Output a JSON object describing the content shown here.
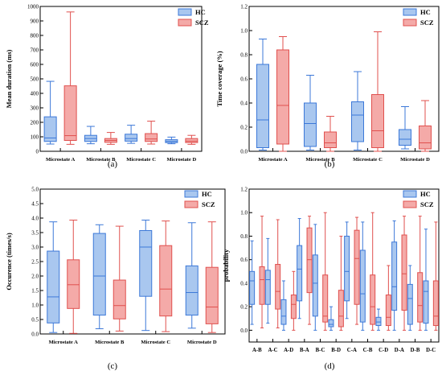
{
  "colors": {
    "hc_edge": "#3c78d8",
    "hc_fill": "#a9c7ef",
    "scz_edge": "#e0504e",
    "scz_fill": "#f4aaa8"
  },
  "chart_data": [
    {
      "id": "a",
      "type": "box",
      "panel_label": "(a)",
      "ylabel": "Mean duration (ms)",
      "ylim": [
        0,
        1000
      ],
      "yticks": [
        0,
        100,
        200,
        300,
        400,
        500,
        600,
        700,
        800,
        900,
        1000
      ],
      "ytick_labels": [
        "0",
        "100",
        "200",
        "300",
        "400",
        "500",
        "600",
        "700",
        "800",
        "900",
        "1000"
      ],
      "categories": [
        "Microstate A",
        "Microstate B",
        "Microstate C",
        "Microstate D"
      ],
      "legend": [
        "HC",
        "SCZ"
      ],
      "series": [
        {
          "name": "HC",
          "boxes": [
            {
              "min": 50,
              "q1": 68,
              "median": 92,
              "q3": 238,
              "max": 483
            },
            {
              "min": 52,
              "q1": 68,
              "median": 88,
              "q3": 110,
              "max": 172
            },
            {
              "min": 55,
              "q1": 70,
              "median": 88,
              "q3": 118,
              "max": 180
            },
            {
              "min": 52,
              "q1": 60,
              "median": 68,
              "q3": 80,
              "max": 98
            }
          ]
        },
        {
          "name": "SCZ",
          "boxes": [
            {
              "min": 48,
              "q1": 75,
              "median": 108,
              "q3": 452,
              "max": 962
            },
            {
              "min": 48,
              "q1": 62,
              "median": 75,
              "q3": 88,
              "max": 130
            },
            {
              "min": 50,
              "q1": 68,
              "median": 85,
              "q3": 122,
              "max": 208
            },
            {
              "min": 48,
              "q1": 60,
              "median": 70,
              "q3": 88,
              "max": 110
            }
          ]
        }
      ]
    },
    {
      "id": "b",
      "type": "box",
      "panel_label": "(b)",
      "ylabel": "Time coverage (%)",
      "ylim": [
        0,
        1.2
      ],
      "yticks": [
        0,
        0.2,
        0.4,
        0.6,
        0.8,
        1.0,
        1.2
      ],
      "ytick_labels": [
        "0.0",
        "0.2",
        "0.4",
        "0.6",
        "0.8",
        "1.0",
        "1.2"
      ],
      "categories": [
        "Microstate A",
        "Microstate B",
        "Microstate C",
        "Microstate D"
      ],
      "legend": [
        "HC",
        "SCZ"
      ],
      "series": [
        {
          "name": "HC",
          "boxes": [
            {
              "min": 0.01,
              "q1": 0.03,
              "median": 0.26,
              "q3": 0.72,
              "max": 0.93
            },
            {
              "min": 0.01,
              "q1": 0.04,
              "median": 0.23,
              "q3": 0.4,
              "max": 0.63
            },
            {
              "min": 0.01,
              "q1": 0.08,
              "median": 0.3,
              "q3": 0.41,
              "max": 0.66
            },
            {
              "min": 0.02,
              "q1": 0.05,
              "median": 0.1,
              "q3": 0.18,
              "max": 0.37
            }
          ]
        },
        {
          "name": "SCZ",
          "boxes": [
            {
              "min": 0.0,
              "q1": 0.06,
              "median": 0.38,
              "q3": 0.84,
              "max": 0.95
            },
            {
              "min": 0.0,
              "q1": 0.03,
              "median": 0.07,
              "q3": 0.16,
              "max": 0.29
            },
            {
              "min": 0.0,
              "q1": 0.03,
              "median": 0.17,
              "q3": 0.47,
              "max": 0.99
            },
            {
              "min": 0.0,
              "q1": 0.02,
              "median": 0.07,
              "q3": 0.21,
              "max": 0.42
            }
          ]
        }
      ]
    },
    {
      "id": "c",
      "type": "box",
      "panel_label": "(c)",
      "ylabel": "Occurence (times/s)",
      "ylim": [
        0,
        5
      ],
      "yticks": [
        0,
        0.5,
        1,
        1.5,
        2,
        2.5,
        3,
        3.5,
        4,
        4.5,
        5
      ],
      "ytick_labels": [
        "0.0",
        "0.5",
        "1.0",
        "1.5",
        "2.0",
        "2.5",
        "3.0",
        "3.5",
        "4.0",
        "4.5",
        "5.0"
      ],
      "categories": [
        "Microstate A",
        "Microstate B",
        "Microstate C",
        "Microstate D"
      ],
      "legend": [
        "HC",
        "SCZ"
      ],
      "series": [
        {
          "name": "HC",
          "boxes": [
            {
              "min": 0.05,
              "q1": 0.38,
              "median": 1.28,
              "q3": 2.86,
              "max": 3.87
            },
            {
              "min": 0.18,
              "q1": 0.65,
              "median": 2.0,
              "q3": 3.47,
              "max": 3.77
            },
            {
              "min": 0.12,
              "q1": 1.3,
              "median": 3.0,
              "q3": 3.57,
              "max": 3.93
            },
            {
              "min": 0.2,
              "q1": 0.65,
              "median": 1.43,
              "q3": 2.35,
              "max": 3.84
            }
          ]
        },
        {
          "name": "SCZ",
          "boxes": [
            {
              "min": 0.02,
              "q1": 0.88,
              "median": 1.7,
              "q3": 2.56,
              "max": 3.93
            },
            {
              "min": 0.1,
              "q1": 0.52,
              "median": 0.98,
              "q3": 1.86,
              "max": 3.72
            },
            {
              "min": 0.08,
              "q1": 0.62,
              "median": 1.55,
              "q3": 3.05,
              "max": 3.9
            },
            {
              "min": 0.05,
              "q1": 0.35,
              "median": 0.93,
              "q3": 2.3,
              "max": 3.87
            }
          ]
        }
      ]
    },
    {
      "id": "d",
      "type": "box",
      "panel_label": "(d)",
      "ylabel": "probability",
      "ylim": [
        -0.1,
        1.2
      ],
      "yticks": [
        0,
        0.2,
        0.4,
        0.6,
        0.8,
        1.0,
        1.2
      ],
      "ytick_labels": [
        "0.0",
        "0.2",
        "0.4",
        "0.6",
        "0.8",
        "1.0",
        "1.2"
      ],
      "categories": [
        "A-B",
        "A-C",
        "A-D",
        "B-A",
        "B-C",
        "B-D",
        "C-A",
        "C-B",
        "C-D",
        "D-A",
        "D-B",
        "D-C"
      ],
      "legend": [
        "HC",
        "SCZ"
      ],
      "series": [
        {
          "name": "HC",
          "boxes": [
            {
              "min": 0.05,
              "q1": 0.22,
              "median": 0.42,
              "q3": 0.5,
              "max": 0.76
            },
            {
              "min": 0.06,
              "q1": 0.22,
              "median": 0.43,
              "q3": 0.51,
              "max": 0.78
            },
            {
              "min": 0.0,
              "q1": 0.05,
              "median": 0.12,
              "q3": 0.26,
              "max": 0.42
            },
            {
              "min": 0.1,
              "q1": 0.25,
              "median": 0.52,
              "q3": 0.72,
              "max": 0.95
            },
            {
              "min": 0.0,
              "q1": 0.12,
              "median": 0.4,
              "q3": 0.64,
              "max": 0.9
            },
            {
              "min": 0.0,
              "q1": 0.03,
              "median": 0.05,
              "q3": 0.09,
              "max": 0.2
            },
            {
              "min": 0.1,
              "q1": 0.25,
              "median": 0.5,
              "q3": 0.8,
              "max": 0.92
            },
            {
              "min": 0.0,
              "q1": 0.07,
              "median": 0.31,
              "q3": 0.68,
              "max": 0.92
            },
            {
              "min": 0.0,
              "q1": 0.04,
              "median": 0.07,
              "q3": 0.11,
              "max": 0.18
            },
            {
              "min": 0.0,
              "q1": 0.17,
              "median": 0.37,
              "q3": 0.75,
              "max": 0.93
            },
            {
              "min": 0.0,
              "q1": 0.05,
              "median": 0.27,
              "q3": 0.39,
              "max": 0.55
            },
            {
              "min": 0.0,
              "q1": 0.06,
              "median": 0.33,
              "q3": 0.42,
              "max": 0.86
            }
          ]
        },
        {
          "name": "SCZ",
          "boxes": [
            {
              "min": 0.02,
              "q1": 0.22,
              "median": 0.43,
              "q3": 0.54,
              "max": 0.97
            },
            {
              "min": 0.02,
              "q1": 0.18,
              "median": 0.33,
              "q3": 0.56,
              "max": 0.94
            },
            {
              "min": 0.0,
              "q1": 0.1,
              "median": 0.22,
              "q3": 0.3,
              "max": 0.5
            },
            {
              "min": 0.05,
              "q1": 0.32,
              "median": 0.6,
              "q3": 0.87,
              "max": 0.97
            },
            {
              "min": 0.0,
              "q1": 0.07,
              "median": 0.12,
              "q3": 0.47,
              "max": 1.0
            },
            {
              "min": 0.0,
              "q1": 0.03,
              "median": 0.12,
              "q3": 0.34,
              "max": 0.8
            },
            {
              "min": 0.05,
              "q1": 0.22,
              "median": 0.61,
              "q3": 0.85,
              "max": 0.96
            },
            {
              "min": 0.0,
              "q1": 0.05,
              "median": 0.2,
              "q3": 0.47,
              "max": 1.0
            },
            {
              "min": 0.0,
              "q1": 0.04,
              "median": 0.11,
              "q3": 0.3,
              "max": 0.55
            },
            {
              "min": 0.0,
              "q1": 0.17,
              "median": 0.48,
              "q3": 0.81,
              "max": 0.97
            },
            {
              "min": 0.0,
              "q1": 0.07,
              "median": 0.21,
              "q3": 0.49,
              "max": 0.97
            },
            {
              "min": 0.0,
              "q1": 0.04,
              "median": 0.12,
              "q3": 0.42,
              "max": 0.92
            }
          ]
        }
      ]
    }
  ]
}
